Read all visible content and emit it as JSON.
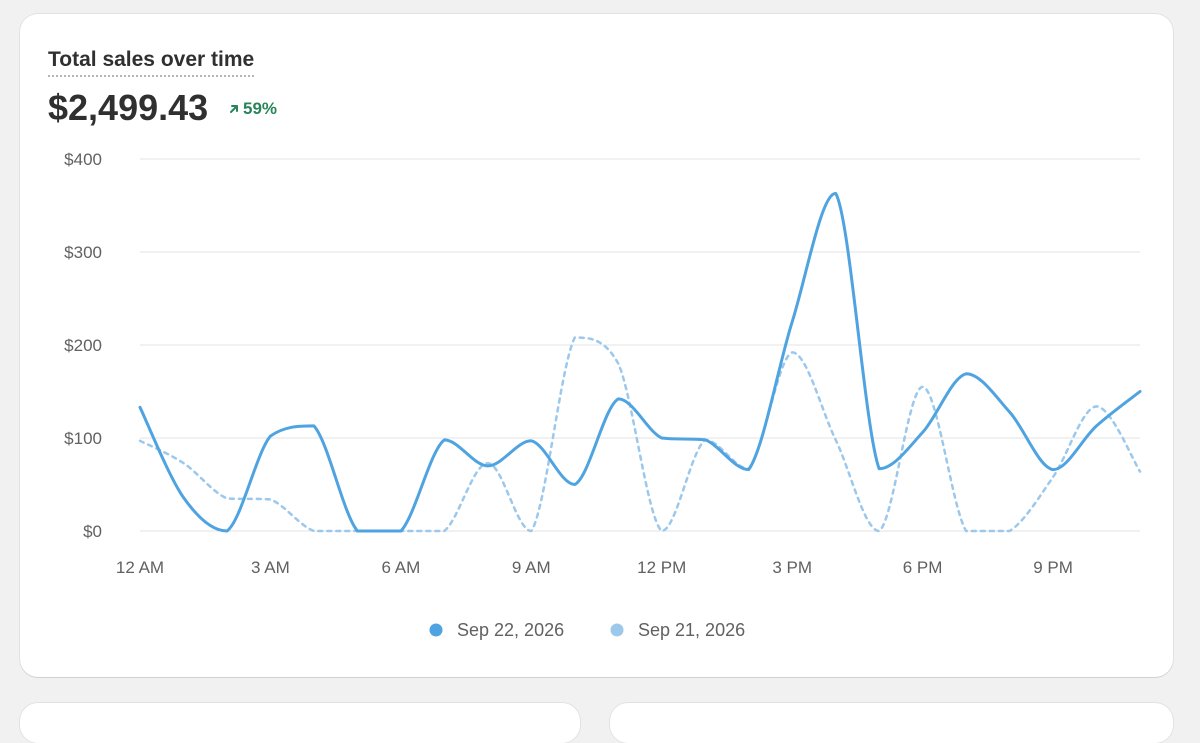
{
  "header": {
    "title": "Total sales over time",
    "total": "$2,499.43",
    "change": "59%",
    "change_direction": "up",
    "change_color": "#29845a"
  },
  "chart_data": {
    "type": "line",
    "title": "Total sales over time",
    "xlabel": "",
    "ylabel": "",
    "ylim": [
      0,
      400
    ],
    "xlim": [
      0,
      23
    ],
    "y_ticks": [
      0,
      100,
      200,
      300,
      400
    ],
    "y_tick_labels": [
      "$0",
      "$100",
      "$200",
      "$300",
      "$400"
    ],
    "x_ticks": [
      0,
      3,
      6,
      9,
      12,
      15,
      18,
      21
    ],
    "x_tick_labels": [
      "12 AM",
      "3 AM",
      "6 AM",
      "9 AM",
      "12 PM",
      "3 PM",
      "6 PM",
      "9 PM"
    ],
    "grid": true,
    "legend_position": "bottom",
    "x": [
      0,
      1,
      2,
      3,
      4,
      5,
      6,
      7,
      8,
      9,
      10,
      11,
      12,
      13,
      14,
      15,
      16,
      17,
      18,
      19,
      20,
      21,
      22,
      23
    ],
    "series": [
      {
        "name": "Sep 22, 2026",
        "color": "#4ea3e0",
        "style": "solid",
        "values": [
          133,
          36,
          0,
          102,
          113,
          0,
          0,
          98,
          70,
          97,
          50,
          142,
          100,
          98,
          66,
          225,
          363,
          67,
          106,
          169,
          128,
          66,
          113,
          150
        ]
      },
      {
        "name": "Sep 21, 2026",
        "color": "#9cc8ec",
        "style": "dashed",
        "values": [
          97,
          73,
          35,
          34,
          0,
          0,
          0,
          0,
          73,
          0,
          208,
          180,
          0,
          98,
          67,
          192,
          98,
          0,
          155,
          0,
          0,
          58,
          134,
          64
        ]
      }
    ]
  }
}
